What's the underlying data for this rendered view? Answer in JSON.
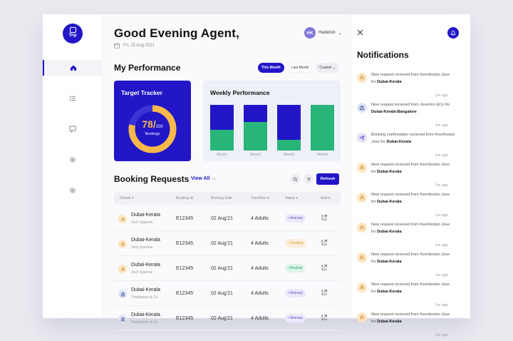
{
  "logo": {
    "text": "Trip"
  },
  "sidebar": {
    "items": [
      {
        "name": "home",
        "active": true
      },
      {
        "name": "list"
      },
      {
        "name": "chat"
      },
      {
        "name": "settings-1"
      },
      {
        "name": "settings-2"
      }
    ]
  },
  "header": {
    "greeting": "Good Evening Agent,",
    "date": "Fri, 22 Aug 2021",
    "user_initials": "HK",
    "user_name": "Harikrish"
  },
  "performance": {
    "title": "My Performance",
    "tabs": [
      "This Month",
      "Last Month",
      "Custom"
    ],
    "active_tab": "This Month",
    "target": {
      "title": "Target Tracker",
      "value": "78/",
      "total": "100",
      "label": "Bookings",
      "fraction": 0.78
    },
    "weekly": {
      "title": "Weekly Performance",
      "colors": {
        "primary": "#2216c7",
        "secondary": "#27b57a"
      },
      "weeks": [
        {
          "label": "Week1",
          "top_fraction": 0.55
        },
        {
          "label": "Week2",
          "top_fraction": 0.38
        },
        {
          "label": "Week3",
          "top_fraction": 0.77
        },
        {
          "label": "Week4",
          "top_fraction": 0.0
        }
      ]
    }
  },
  "bookings": {
    "title": "Booking Requests",
    "view_all": "View All →",
    "refresh": "Refresh",
    "columns": [
      "Details",
      "Booking Id",
      "Booking Date",
      "Travellers",
      "Status",
      "Action"
    ],
    "rows": [
      {
        "icon": "user",
        "name": "Dubai-Kerala",
        "sub": "Jack Sparrow",
        "id": "E12345",
        "date": "02 Aug'21",
        "travellers": "4 Adults",
        "status": "• Itinerary",
        "status_type": "itinerary"
      },
      {
        "icon": "user",
        "name": "Dubai-Kerala",
        "sub": "Jack Sparrow",
        "id": "E12345",
        "date": "02 Aug'21",
        "travellers": "4 Adults",
        "status": "• Pending",
        "status_type": "pending"
      },
      {
        "icon": "user",
        "name": "Dubai-Kerala",
        "sub": "Jack Sparrow",
        "id": "E12345",
        "date": "02 Aug'21",
        "travellers": "4 Adults",
        "status": "• Booked",
        "status_type": "booked"
      },
      {
        "icon": "bank",
        "name": "Dubai-Kerala",
        "sub": "Thadikaran & Co",
        "id": "E12345",
        "date": "02 Aug'21",
        "travellers": "4 Adults",
        "status": "• Itinerary",
        "status_type": "itinerary"
      },
      {
        "icon": "bank",
        "name": "Dubai-Kerala",
        "sub": "Thadikaran & Co",
        "id": "E12345",
        "date": "02 Aug'21",
        "travellers": "4 Adults",
        "status": "• Itinerary",
        "status_type": "itinerary"
      }
    ]
  },
  "notifications": {
    "title": "Notifications",
    "items": [
      {
        "icon": "user",
        "text": "New request recieved from Keerikodan Jose for ",
        "bold": "Dubai-Kerala",
        "time": "1m ago"
      },
      {
        "icon": "bank",
        "text": "New request recieved from Joserton &Co for ",
        "bold": "Dubai-Kerala-Bangalore",
        "time": "1m ago"
      },
      {
        "icon": "plane",
        "text": "Booking confirmation recieved from Keerikodan Jose for ",
        "bold": "Dubai-Kerala",
        "time": "1m ago"
      },
      {
        "icon": "user",
        "text": "New request recieved from Keerikodan Jose for ",
        "bold": "Dubai-Kerala",
        "time": "1m ago"
      },
      {
        "icon": "user",
        "text": "New request recieved from Keerikodan Jose for ",
        "bold": "Dubai-Kerala",
        "time": "1m ago"
      },
      {
        "icon": "user",
        "text": "New request recieved from Keerikodan Jose for ",
        "bold": "Dubai-Kerala",
        "time": "1m ago"
      },
      {
        "icon": "user",
        "text": "New request recieved from Keerikodan Jose for ",
        "bold": "Dubai-Kerala",
        "time": "1m ago"
      },
      {
        "icon": "user",
        "text": "New request recieved from Keerikodan Jose for ",
        "bold": "Dubai-Kerala",
        "time": "1m ago"
      },
      {
        "icon": "user",
        "text": "New request recieved from Keerikodan Jose for ",
        "bold": "Dubai-Kerala",
        "time": "1m ago"
      }
    ]
  },
  "colors": {
    "accent": "#2216c7",
    "green": "#27b57a",
    "orange": "#f9b84a"
  }
}
